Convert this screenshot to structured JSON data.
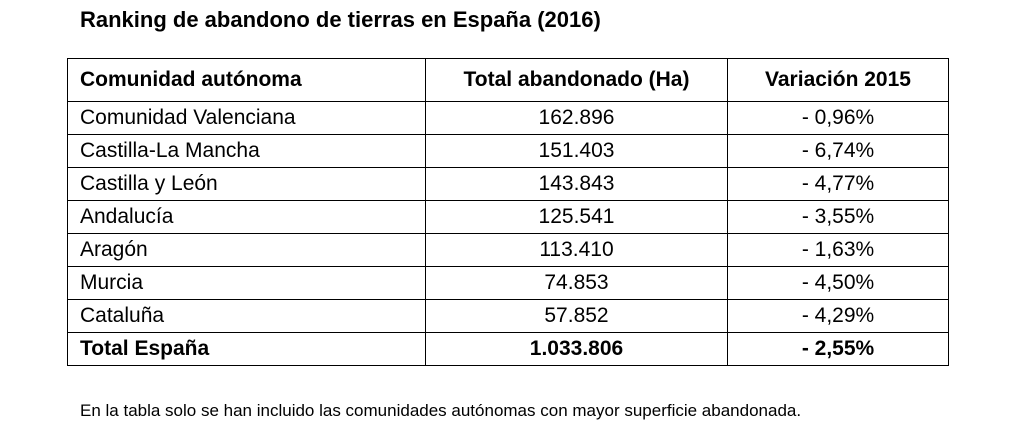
{
  "title": "Ranking de abandono de tierras en España (2016)",
  "table": {
    "headers": [
      "Comunidad autónoma",
      "Total abandonado (Ha)",
      "Variación 2015"
    ],
    "rows": [
      [
        "Comunidad Valenciana",
        "162.896",
        "- 0,96%"
      ],
      [
        "Castilla-La Mancha",
        "151.403",
        "- 6,74%"
      ],
      [
        "Castilla y León",
        "143.843",
        "- 4,77%"
      ],
      [
        "Andalucía",
        "125.541",
        "- 3,55%"
      ],
      [
        "Aragón",
        "113.410",
        "- 1,63%"
      ],
      [
        "Murcia",
        "74.853",
        "- 4,50%"
      ],
      [
        "Cataluña",
        "57.852",
        "- 4,29%"
      ]
    ],
    "total": [
      "Total España",
      "1.033.806",
      "- 2,55%"
    ]
  },
  "note": "En la tabla solo se han incluido las comunidades autónomas con mayor superficie abandonada."
}
